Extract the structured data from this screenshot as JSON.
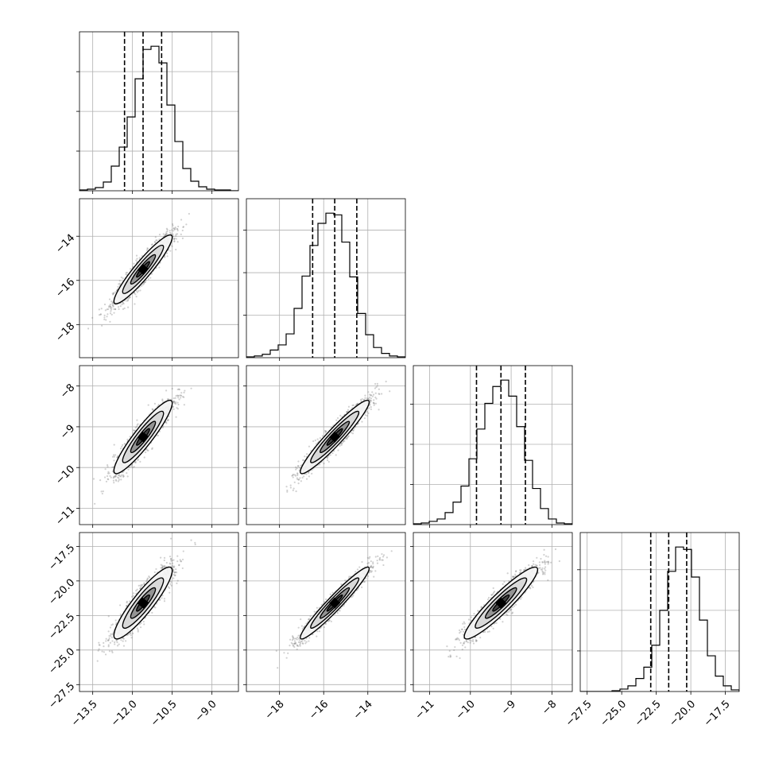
{
  "chart_data": {
    "type": "corner",
    "grid": true,
    "histogram_bins": 20,
    "quantiles": [
      0.16,
      0.5,
      0.84
    ],
    "parameters": [
      {
        "id": "p1",
        "range": [
          -14.0,
          -8.0
        ],
        "ticks": [
          -13.5,
          -12.0,
          -10.5,
          -9.0
        ],
        "tick_labels": [
          "−13.5",
          "−12.0",
          "−10.5",
          "−9.0"
        ],
        "quantile_values": [
          -12.3,
          -11.6,
          -10.9
        ],
        "hist_counts": [
          1,
          2,
          4,
          11,
          31,
          55,
          93,
          141,
          178,
          182,
          161,
          108,
          62,
          28,
          12,
          5,
          2,
          1,
          1,
          0
        ]
      },
      {
        "id": "p2",
        "range": [
          -19.5,
          -12.3
        ],
        "ticks": [
          -18,
          -16,
          -14
        ],
        "tick_labels": [
          "−18",
          "−16",
          "−14"
        ],
        "quantile_values": [
          -16.5,
          -15.5,
          -14.5
        ],
        "hist_counts": [
          1,
          2,
          4,
          9,
          15,
          28,
          58,
          96,
          132,
          158,
          170,
          168,
          136,
          95,
          52,
          27,
          12,
          5,
          2,
          1
        ]
      },
      {
        "id": "p3",
        "range": [
          -11.4,
          -7.5
        ],
        "ticks": [
          -11,
          -10,
          -9,
          -8
        ],
        "tick_labels": [
          "−11",
          "−10",
          "−9",
          "−8"
        ],
        "quantile_values": [
          -9.85,
          -9.25,
          -8.65
        ],
        "hist_counts": [
          1,
          2,
          4,
          7,
          15,
          28,
          48,
          82,
          119,
          151,
          172,
          180,
          160,
          122,
          80,
          45,
          20,
          7,
          2,
          1
        ]
      },
      {
        "id": "p4",
        "range": [
          -28.0,
          -16.5
        ],
        "ticks": [
          -27.5,
          -25.0,
          -22.5,
          -20.0,
          -17.5
        ],
        "tick_labels": [
          "−27.5",
          "−25.0",
          "−22.5",
          "−20.0",
          "−17.5"
        ],
        "quantile_values": [
          -22.9,
          -21.6,
          -20.3
        ],
        "hist_counts": [
          0,
          0,
          0,
          0,
          1,
          3,
          7,
          16,
          30,
          57,
          100,
          148,
          178,
          175,
          141,
          88,
          44,
          19,
          7,
          2
        ]
      }
    ],
    "pairs": [
      {
        "x": "p1",
        "y": "p2",
        "mean": [
          -11.6,
          -15.5
        ],
        "sd": [
          0.55,
          0.78
        ],
        "rho": 0.93
      },
      {
        "x": "p1",
        "y": "p3",
        "mean": [
          -11.6,
          -9.25
        ],
        "sd": [
          0.55,
          0.45
        ],
        "rho": 0.92
      },
      {
        "x": "p2",
        "y": "p3",
        "mean": [
          -15.5,
          -9.25
        ],
        "sd": [
          0.78,
          0.45
        ],
        "rho": 0.95
      },
      {
        "x": "p1",
        "y": "p4",
        "mean": [
          -11.6,
          -21.6
        ],
        "sd": [
          0.55,
          1.3
        ],
        "rho": 0.9
      },
      {
        "x": "p2",
        "y": "p4",
        "mean": [
          -15.5,
          -21.6
        ],
        "sd": [
          0.78,
          1.3
        ],
        "rho": 0.96
      },
      {
        "x": "p3",
        "y": "p4",
        "mean": [
          -9.25,
          -21.6
        ],
        "sd": [
          0.45,
          1.3
        ],
        "rho": 0.93
      }
    ]
  }
}
